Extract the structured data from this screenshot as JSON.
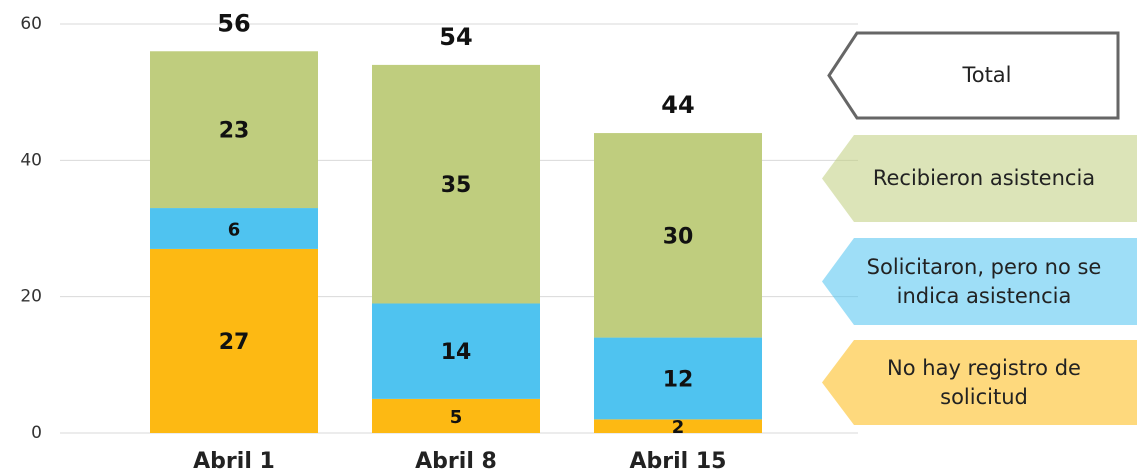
{
  "chart_data": {
    "type": "stacked_bar",
    "categories": [
      "Abril 1",
      "Abril 8",
      "Abril 15"
    ],
    "series": [
      {
        "name": "No hay registro de solicitud",
        "color": "#fdb913",
        "values": [
          27,
          5,
          2
        ]
      },
      {
        "name": "Solicitaron, pero no se indica asistencia",
        "color": "#4fc3f0",
        "values": [
          6,
          14,
          12
        ]
      },
      {
        "name": "Recibieron asistencia",
        "color": "#bfcd7e",
        "values": [
          23,
          35,
          30
        ]
      }
    ],
    "totals": {
      "name": "Total",
      "values": [
        56,
        54,
        44
      ]
    },
    "ylim": [
      0,
      60
    ],
    "yticks": [
      0,
      20,
      40,
      60
    ],
    "grid": true,
    "legend": "right"
  }
}
